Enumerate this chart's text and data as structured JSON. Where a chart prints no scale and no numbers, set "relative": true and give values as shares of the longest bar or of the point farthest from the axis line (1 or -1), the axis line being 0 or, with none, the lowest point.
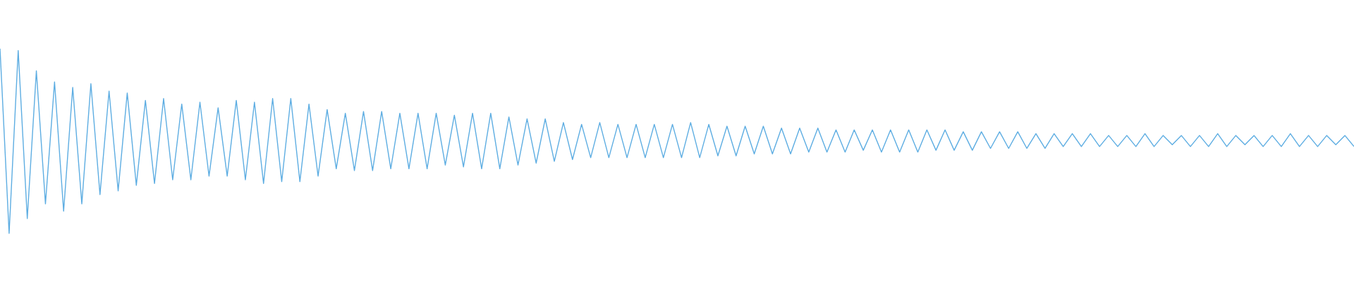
{
  "chart_data": {
    "type": "line",
    "relative": true,
    "marker": "none",
    "line_style": "solid",
    "categories": [
      null,
      null,
      null,
      null,
      null,
      null,
      null,
      null,
      null,
      null,
      null,
      null,
      null,
      null,
      null,
      null,
      null,
      null,
      null,
      null,
      null,
      null,
      null,
      null,
      null,
      null,
      null,
      null,
      null,
      null,
      null,
      null,
      null,
      null,
      null,
      null,
      null,
      null,
      null,
      null,
      null,
      null,
      null,
      null,
      null,
      null,
      null,
      null,
      null,
      null,
      null,
      null,
      null,
      null,
      null,
      null,
      null,
      null,
      null,
      null,
      null,
      null,
      null,
      null,
      null,
      null,
      null,
      null,
      null,
      null,
      null,
      null,
      null,
      null,
      null,
      null,
      null,
      null,
      null,
      null,
      null,
      null,
      null,
      null,
      null,
      null,
      null,
      null,
      null,
      null,
      null,
      null,
      null,
      null,
      null,
      null,
      null,
      null,
      null,
      null,
      null,
      null,
      null,
      null,
      null,
      null,
      null,
      null,
      null,
      null,
      null,
      null,
      null,
      null,
      null,
      null,
      null,
      null,
      null,
      null,
      null,
      null,
      null,
      null,
      null,
      null,
      null,
      null,
      null,
      null,
      null,
      null,
      null,
      null,
      null,
      null,
      null,
      null,
      null,
      null,
      null,
      null,
      null,
      null,
      null,
      null,
      null,
      null,
      null,
      null
    ],
    "series": [
      {
        "color": "#5dade2",
        "values": [
          1.0,
          0.0,
          0.99,
          0.08,
          0.88,
          0.16,
          0.82,
          0.12,
          0.79,
          0.16,
          0.81,
          0.21,
          0.77,
          0.23,
          0.76,
          0.26,
          0.72,
          0.27,
          0.73,
          0.29,
          0.7,
          0.29,
          0.71,
          0.31,
          0.68,
          0.31,
          0.72,
          0.29,
          0.71,
          0.27,
          0.73,
          0.28,
          0.73,
          0.28,
          0.7,
          0.31,
          0.67,
          0.35,
          0.65,
          0.34,
          0.66,
          0.34,
          0.66,
          0.35,
          0.65,
          0.35,
          0.65,
          0.35,
          0.65,
          0.37,
          0.64,
          0.36,
          0.65,
          0.35,
          0.65,
          0.35,
          0.63,
          0.37,
          0.62,
          0.38,
          0.62,
          0.39,
          0.6,
          0.4,
          0.59,
          0.41,
          0.6,
          0.41,
          0.59,
          0.41,
          0.59,
          0.41,
          0.59,
          0.41,
          0.59,
          0.41,
          0.6,
          0.41,
          0.59,
          0.42,
          0.58,
          0.42,
          0.58,
          0.43,
          0.58,
          0.43,
          0.57,
          0.43,
          0.57,
          0.44,
          0.57,
          0.44,
          0.56,
          0.44,
          0.56,
          0.45,
          0.56,
          0.44,
          0.56,
          0.44,
          0.56,
          0.44,
          0.56,
          0.45,
          0.56,
          0.45,
          0.55,
          0.45,
          0.55,
          0.46,
          0.55,
          0.46,
          0.55,
          0.46,
          0.54,
          0.46,
          0.54,
          0.47,
          0.54,
          0.47,
          0.54,
          0.47,
          0.53,
          0.47,
          0.53,
          0.47,
          0.54,
          0.47,
          0.53,
          0.48,
          0.53,
          0.47,
          0.53,
          0.47,
          0.54,
          0.47,
          0.53,
          0.48,
          0.53,
          0.47,
          0.53,
          0.47,
          0.54,
          0.47,
          0.53,
          0.47,
          0.53,
          0.48,
          0.53,
          0.47
        ]
      }
    ]
  }
}
